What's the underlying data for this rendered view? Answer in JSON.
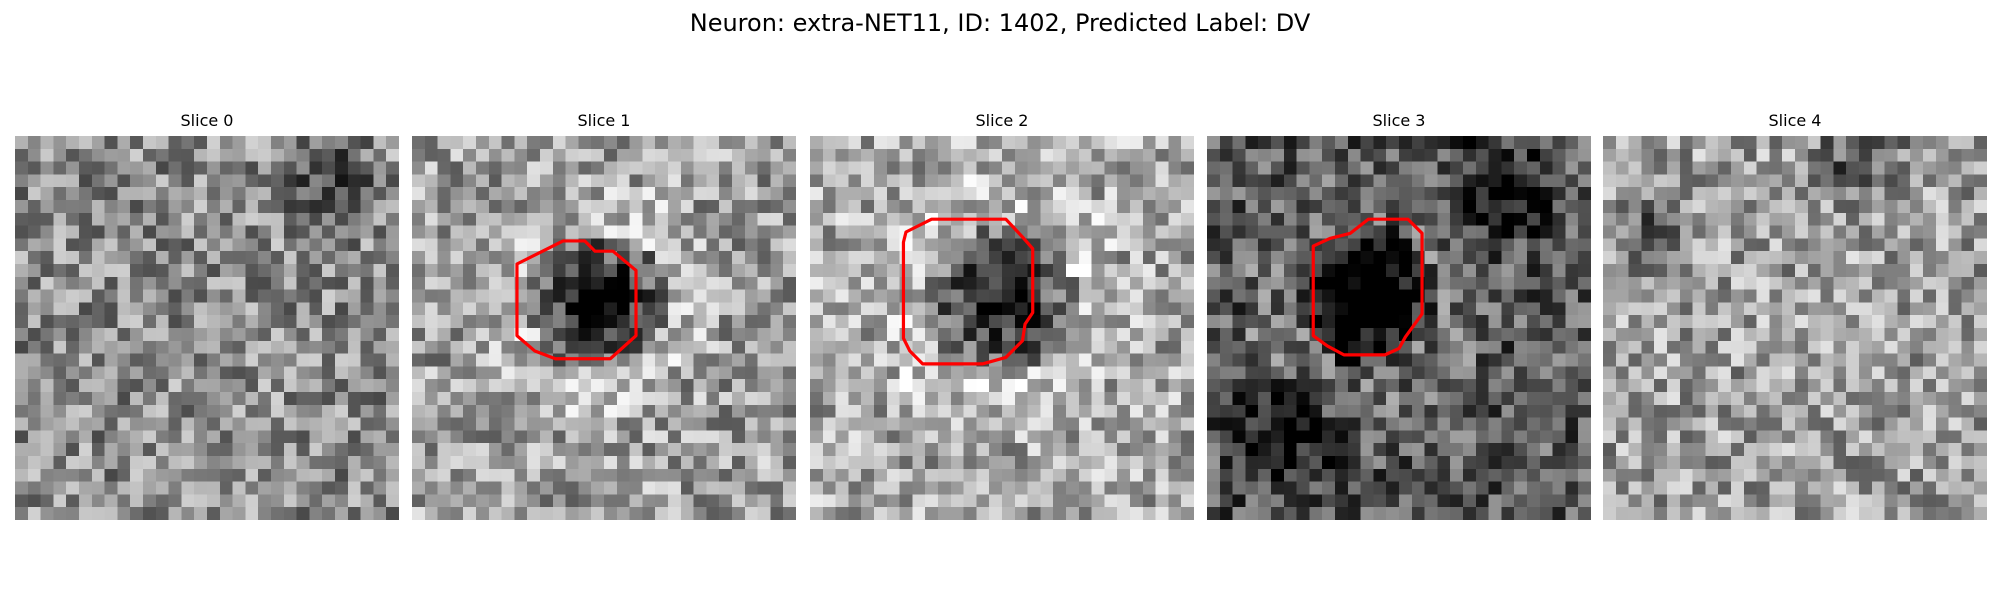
{
  "figure": {
    "title": "Neuron: extra-NET11, ID: 1402, Predicted Label: DV"
  },
  "panels": [
    {
      "title": "Slice 0",
      "has_contour": false,
      "mean_brightness": 0.55,
      "dark_region": "none"
    },
    {
      "title": "Slice 1",
      "has_contour": true,
      "mean_brightness": 0.62,
      "dark_region": "center"
    },
    {
      "title": "Slice 2",
      "has_contour": true,
      "mean_brightness": 0.66,
      "dark_region": "center"
    },
    {
      "title": "Slice 3",
      "has_contour": true,
      "mean_brightness": 0.35,
      "dark_region": "center"
    },
    {
      "title": "Slice 4",
      "has_contour": false,
      "mean_brightness": 0.62,
      "dark_region": "top-right"
    }
  ],
  "style": {
    "contour_color": "#ff0000",
    "colormap": "grayscale"
  }
}
